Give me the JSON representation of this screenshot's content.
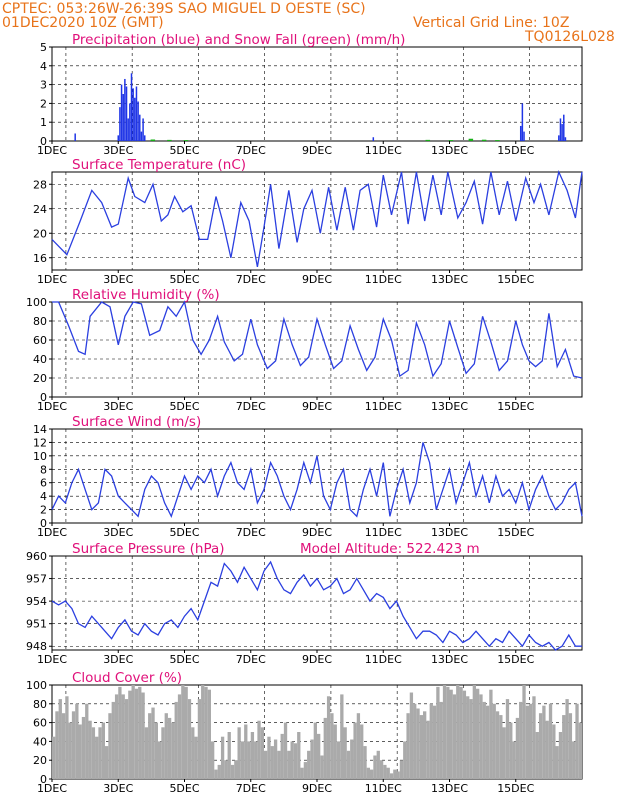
{
  "header": {
    "line1": "CPTEC:   053:26W-26:39S  SAO MIGUEL D OESTE (SC)",
    "line2_left": "01DEC2020 10Z (GMT)",
    "line2_right": "Vertical Grid Line: 10Z",
    "line3_right": "TQ0126L028"
  },
  "colors": {
    "header": "#e8731a",
    "title": "#e0107a",
    "rain": "#1f35e6",
    "snow": "#18b018",
    "line": "#2b3fe0",
    "cloud": "#aaaaaa"
  },
  "chart_data": [
    {
      "type": "bar",
      "title": "Precipitation (blue) and Snow Fall (green) (mm/h)",
      "x_ticks": [
        "1DEC",
        "3DEC",
        "5DEC",
        "7DEC",
        "9DEC",
        "11DEC",
        "13DEC",
        "15DEC"
      ],
      "ylim": [
        0,
        5
      ],
      "y_ticks": [
        0,
        1,
        2,
        3,
        4,
        5
      ],
      "rain_events": [
        [
          0.7,
          0.4
        ],
        [
          2.0,
          0.3
        ],
        [
          2.05,
          1.8
        ],
        [
          2.1,
          3.0
        ],
        [
          2.15,
          2.5
        ],
        [
          2.2,
          3.3
        ],
        [
          2.25,
          2.9
        ],
        [
          2.3,
          1.2
        ],
        [
          2.35,
          2.0
        ],
        [
          2.4,
          3.6
        ],
        [
          2.45,
          2.8
        ],
        [
          2.5,
          2.3
        ],
        [
          2.55,
          2.9
        ],
        [
          2.6,
          2.1
        ],
        [
          2.65,
          1.4
        ],
        [
          2.7,
          0.5
        ],
        [
          2.75,
          1.2
        ],
        [
          2.8,
          0.3
        ],
        [
          9.7,
          0.2
        ],
        [
          14.15,
          0.8
        ],
        [
          14.2,
          2.0
        ],
        [
          14.25,
          0.5
        ],
        [
          15.3,
          0.3
        ],
        [
          15.35,
          1.2
        ],
        [
          15.4,
          0.9
        ],
        [
          15.45,
          1.4
        ],
        [
          15.5,
          0.2
        ]
      ],
      "snow_events": [
        [
          3.0,
          0.08
        ],
        [
          3.5,
          0.06
        ],
        [
          4.0,
          0.05
        ],
        [
          11.3,
          0.06
        ],
        [
          12.0,
          0.05
        ],
        [
          12.6,
          0.12
        ],
        [
          13.0,
          0.07
        ],
        [
          13.4,
          0.05
        ]
      ]
    },
    {
      "type": "line",
      "title": "Surface Temperature (nC)",
      "x_ticks": [
        "1DEC",
        "3DEC",
        "5DEC",
        "7DEC",
        "9DEC",
        "11DEC",
        "13DEC",
        "15DEC"
      ],
      "ylim": [
        14,
        30
      ],
      "y_ticks": [
        16,
        20,
        24,
        28
      ],
      "x": [
        0,
        0.45,
        0.85,
        1.2,
        1.5,
        1.8,
        2.0,
        2.3,
        2.5,
        2.8,
        3.05,
        3.3,
        3.5,
        3.7,
        3.95,
        4.2,
        4.45,
        4.7,
        4.95,
        5.15,
        5.4,
        5.7,
        5.95,
        6.2,
        6.4,
        6.6,
        6.85,
        7.15,
        7.4,
        7.6,
        7.85,
        8.1,
        8.35,
        8.6,
        8.85,
        9.1,
        9.3,
        9.55,
        9.8,
        10.0,
        10.25,
        10.55,
        10.75,
        11.0,
        11.25,
        11.5,
        11.75,
        11.95,
        12.25,
        12.5,
        12.75,
        13.0,
        13.25,
        13.5,
        13.75,
        14.0,
        14.3,
        14.55,
        14.75,
        15.0,
        15.3,
        15.55,
        15.8,
        16.0
      ],
      "y": [
        19,
        16.5,
        22,
        27,
        25,
        21,
        21.5,
        29,
        26,
        25,
        28,
        22,
        23,
        26,
        23.5,
        24.5,
        19,
        19,
        26,
        22,
        16,
        25,
        22,
        14.5,
        21,
        28,
        17.5,
        27,
        18.5,
        24,
        27,
        20,
        27.5,
        20.5,
        27.5,
        20.5,
        27,
        28,
        21,
        29.5,
        23,
        30,
        21.5,
        30,
        22,
        29.5,
        23,
        30,
        22.5,
        25,
        28.5,
        21.5,
        30,
        23,
        28.5,
        22,
        29,
        25,
        28,
        23,
        30,
        27,
        22.5,
        30
      ]
    },
    {
      "type": "line",
      "title": "Relative Humidity (%)",
      "x_ticks": [
        "1DEC",
        "3DEC",
        "5DEC",
        "7DEC",
        "9DEC",
        "11DEC",
        "13DEC",
        "15DEC"
      ],
      "ylim": [
        0,
        100
      ],
      "y_ticks": [
        0,
        20,
        40,
        60,
        80,
        100
      ],
      "x": [
        0,
        0.2,
        0.5,
        0.8,
        1.0,
        1.15,
        1.5,
        1.75,
        2.0,
        2.2,
        2.45,
        2.7,
        2.95,
        3.25,
        3.5,
        3.75,
        4.0,
        4.25,
        4.5,
        4.75,
        5.0,
        5.2,
        5.5,
        5.75,
        6.0,
        6.2,
        6.5,
        6.75,
        7.0,
        7.25,
        7.5,
        7.75,
        8.0,
        8.25,
        8.5,
        8.75,
        9.0,
        9.25,
        9.5,
        9.75,
        10.0,
        10.25,
        10.5,
        10.75,
        11.0,
        11.25,
        11.5,
        11.75,
        12.0,
        12.25,
        12.5,
        12.75,
        13.0,
        13.25,
        13.5,
        13.75,
        14.0,
        14.2,
        14.4,
        14.6,
        14.8,
        15.0,
        15.25,
        15.5,
        15.75,
        16.0
      ],
      "y": [
        100,
        100,
        75,
        48,
        45,
        85,
        100,
        95,
        55,
        85,
        100,
        98,
        65,
        70,
        95,
        85,
        100,
        60,
        45,
        60,
        85,
        58,
        38,
        45,
        82,
        55,
        30,
        38,
        82,
        55,
        33,
        42,
        82,
        55,
        30,
        38,
        75,
        50,
        28,
        42,
        82,
        60,
        22,
        28,
        78,
        55,
        22,
        35,
        80,
        52,
        25,
        35,
        85,
        58,
        28,
        38,
        80,
        55,
        38,
        32,
        38,
        88,
        32,
        50,
        22,
        20
      ]
    },
    {
      "type": "line",
      "title": "Surface Wind (m/s)",
      "x_ticks": [
        "1DEC",
        "3DEC",
        "5DEC",
        "7DEC",
        "9DEC",
        "11DEC",
        "13DEC",
        "15DEC"
      ],
      "ylim": [
        0,
        14
      ],
      "y_ticks": [
        0,
        2,
        4,
        6,
        8,
        10,
        12,
        14
      ],
      "x": [
        0,
        0.2,
        0.4,
        0.6,
        0.8,
        1.0,
        1.2,
        1.4,
        1.6,
        1.8,
        2.0,
        2.2,
        2.4,
        2.6,
        2.8,
        3.0,
        3.2,
        3.4,
        3.6,
        3.8,
        4.0,
        4.2,
        4.4,
        4.6,
        4.8,
        5.0,
        5.2,
        5.4,
        5.6,
        5.8,
        6.0,
        6.2,
        6.4,
        6.6,
        6.8,
        7.0,
        7.2,
        7.4,
        7.6,
        7.8,
        8.0,
        8.2,
        8.4,
        8.6,
        8.8,
        9.0,
        9.2,
        9.4,
        9.6,
        9.8,
        10.0,
        10.2,
        10.4,
        10.6,
        10.8,
        11.0,
        11.2,
        11.4,
        11.6,
        11.8,
        12.0,
        12.2,
        12.4,
        12.6,
        12.8,
        13.0,
        13.2,
        13.4,
        13.6,
        13.8,
        14.0,
        14.2,
        14.4,
        14.6,
        14.8,
        15.0,
        15.2,
        15.4,
        15.6,
        15.8,
        16.0
      ],
      "y": [
        2,
        4,
        3,
        6,
        8,
        5,
        2,
        3,
        8,
        7,
        4,
        3,
        2,
        1,
        5,
        7,
        6,
        3,
        1,
        4,
        7,
        5,
        7,
        6,
        8,
        4,
        7,
        9,
        6,
        5,
        8,
        3,
        5,
        9,
        7,
        4,
        2,
        5,
        9,
        6,
        10,
        4,
        2,
        6,
        8,
        2,
        1,
        5,
        8,
        4,
        9,
        1,
        5,
        8,
        3,
        6,
        12,
        9,
        2,
        5,
        8,
        3,
        6,
        9,
        4,
        7,
        3,
        7,
        4,
        5,
        3,
        6,
        2,
        5,
        7,
        4,
        2,
        3,
        5,
        6,
        1
      ]
    },
    {
      "type": "line",
      "title": "Surface Pressure (hPa)",
      "annotation": "Model Altitude: 522.423  m",
      "x_ticks": [
        "1DEC",
        "3DEC",
        "5DEC",
        "7DEC",
        "9DEC",
        "11DEC",
        "13DEC",
        "15DEC"
      ],
      "ylim": [
        947.5,
        960
      ],
      "y_ticks": [
        948,
        951,
        954,
        957,
        960
      ],
      "x": [
        0,
        0.2,
        0.4,
        0.6,
        0.8,
        1.0,
        1.2,
        1.4,
        1.6,
        1.8,
        2.0,
        2.2,
        2.4,
        2.6,
        2.8,
        3.0,
        3.2,
        3.4,
        3.6,
        3.8,
        4.0,
        4.2,
        4.4,
        4.6,
        4.8,
        5.0,
        5.2,
        5.4,
        5.6,
        5.8,
        6.0,
        6.2,
        6.4,
        6.6,
        6.8,
        7.0,
        7.2,
        7.4,
        7.6,
        7.8,
        8.0,
        8.2,
        8.4,
        8.6,
        8.8,
        9.0,
        9.2,
        9.4,
        9.6,
        9.8,
        10.0,
        10.2,
        10.4,
        10.6,
        10.8,
        11.0,
        11.2,
        11.4,
        11.6,
        11.8,
        12.0,
        12.2,
        12.4,
        12.6,
        12.8,
        13.0,
        13.2,
        13.4,
        13.6,
        13.8,
        14.0,
        14.2,
        14.4,
        14.6,
        14.8,
        15.0,
        15.2,
        15.4,
        15.6,
        15.8,
        16.0
      ],
      "y": [
        954,
        953.5,
        954,
        953,
        951,
        950.5,
        952,
        951,
        950,
        949,
        950.5,
        951.5,
        950,
        949.5,
        951,
        950,
        949.5,
        951,
        951.5,
        950.5,
        952,
        953,
        951.5,
        954,
        956.5,
        956,
        959,
        958,
        956.5,
        958.5,
        957,
        955.5,
        958,
        959.2,
        957,
        955.5,
        955,
        956.5,
        957.5,
        956,
        957,
        955.5,
        956,
        957,
        955,
        955.5,
        957,
        955.5,
        954,
        955,
        954.5,
        953,
        954,
        952,
        950.5,
        949,
        950,
        950,
        949.5,
        948.5,
        950,
        949.5,
        948.5,
        949,
        950,
        949,
        948,
        949,
        948.5,
        950,
        949,
        948,
        949.5,
        948.5,
        948,
        948.5,
        947.5,
        948,
        949.5,
        948,
        948
      ]
    },
    {
      "type": "bar",
      "title": "Cloud Cover (%)",
      "x_ticks": [
        "1DEC",
        "3DEC",
        "5DEC",
        "7DEC",
        "9DEC",
        "11DEC",
        "13DEC",
        "15DEC"
      ],
      "ylim": [
        0,
        100
      ],
      "y_ticks": [
        0,
        20,
        40,
        60,
        80,
        100
      ],
      "x": [
        0.05,
        0.15,
        0.25,
        0.35,
        0.45,
        0.55,
        0.65,
        0.75,
        0.85,
        0.95,
        1.05,
        1.15,
        1.25,
        1.35,
        1.45,
        1.55,
        1.65,
        1.75,
        1.85,
        1.95,
        2.05,
        2.15,
        2.25,
        2.35,
        2.45,
        2.55,
        2.65,
        2.75,
        2.85,
        2.95,
        3.05,
        3.15,
        3.25,
        3.35,
        3.45,
        3.55,
        3.65,
        3.75,
        3.85,
        3.95,
        4.05,
        4.15,
        4.25,
        4.35,
        4.45,
        4.55,
        4.65,
        4.75,
        4.85,
        4.95,
        5.05,
        5.15,
        5.25,
        5.35,
        5.45,
        5.55,
        5.65,
        5.75,
        5.85,
        5.95,
        6.05,
        6.15,
        6.25,
        6.35,
        6.45,
        6.55,
        6.65,
        6.75,
        6.85,
        6.95,
        7.05,
        7.15,
        7.25,
        7.35,
        7.45,
        7.55,
        7.65,
        7.75,
        7.85,
        7.95,
        8.05,
        8.15,
        8.25,
        8.35,
        8.45,
        8.55,
        8.65,
        8.75,
        8.85,
        8.95,
        9.05,
        9.15,
        9.25,
        9.35,
        9.45,
        9.55,
        9.65,
        9.75,
        9.85,
        9.95,
        10.05,
        10.15,
        10.25,
        10.35,
        10.45,
        10.55,
        10.65,
        10.75,
        10.85,
        10.95,
        11.05,
        11.15,
        11.25,
        11.35,
        11.45,
        11.55,
        11.65,
        11.75,
        11.85,
        11.95,
        12.05,
        12.15,
        12.25,
        12.35,
        12.45,
        12.55,
        12.65,
        12.75,
        12.85,
        12.95,
        13.05,
        13.15,
        13.25,
        13.35,
        13.45,
        13.55,
        13.65,
        13.75,
        13.85,
        13.95,
        14.05,
        14.15,
        14.25,
        14.35,
        14.45,
        14.55,
        14.65,
        14.75,
        14.85,
        14.95,
        15.05,
        15.15,
        15.25,
        15.35,
        15.45,
        15.55,
        15.65,
        15.75,
        15.85,
        15.95
      ],
      "values": [
        45,
        72,
        85,
        70,
        88,
        60,
        72,
        80,
        58,
        66,
        80,
        62,
        55,
        45,
        55,
        60,
        35,
        70,
        82,
        90,
        98,
        90,
        85,
        94,
        100,
        96,
        98,
        92,
        55,
        70,
        76,
        60,
        40,
        55,
        70,
        65,
        60,
        82,
        90,
        100,
        98,
        85,
        55,
        45,
        85,
        100,
        98,
        95,
        40,
        10,
        15,
        45,
        20,
        50,
        15,
        20,
        55,
        40,
        58,
        40,
        50,
        40,
        62,
        55,
        30,
        45,
        35,
        42,
        30,
        48,
        60,
        30,
        40,
        38,
        50,
        12,
        18,
        30,
        42,
        60,
        48,
        25,
        65,
        88,
        70,
        58,
        40,
        90,
        55,
        30,
        42,
        60,
        70,
        58,
        35,
        12,
        10,
        25,
        30,
        20,
        15,
        12,
        6,
        10,
        8,
        20,
        40,
        70,
        92,
        80,
        75,
        68,
        72,
        62,
        80,
        78,
        98,
        82,
        100,
        98,
        95,
        90,
        100,
        98,
        94,
        88,
        85,
        100,
        96,
        90,
        82,
        78,
        95,
        80,
        72,
        68,
        55,
        85,
        60,
        40,
        65,
        82,
        100,
        78,
        80,
        88,
        50,
        70,
        78,
        62,
        80,
        58,
        35,
        50,
        68,
        85,
        70,
        40,
        80,
        60
      ]
    }
  ]
}
